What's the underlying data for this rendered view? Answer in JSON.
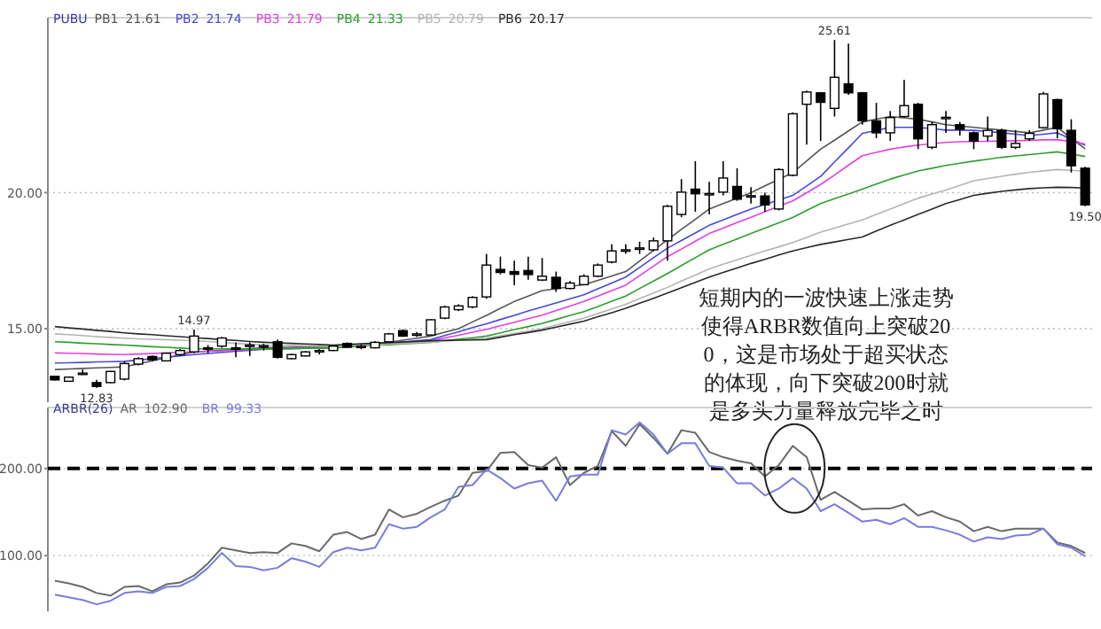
{
  "chart_data": [
    {
      "type": "candlestick",
      "title": "PUBU",
      "categories": [
        null,
        null,
        null,
        null,
        null,
        null,
        null,
        null,
        null,
        null,
        null,
        null,
        null,
        null,
        null,
        null,
        null,
        null,
        null,
        null,
        null,
        null,
        null,
        null,
        null,
        null,
        null,
        null,
        null,
        null,
        null,
        null,
        null,
        null,
        null,
        null,
        null,
        null,
        null,
        null,
        null,
        null,
        null,
        null,
        null,
        null,
        null,
        null,
        null,
        null,
        null,
        null,
        null,
        null,
        null,
        null,
        null,
        null,
        null,
        null,
        null,
        null,
        null,
        null,
        null,
        null,
        null,
        null,
        null,
        null,
        null,
        null,
        null,
        null,
        null
      ],
      "ohlc": [
        [
          13.25,
          13.27,
          13.1,
          13.12
        ],
        [
          13.07,
          13.25,
          13.05,
          13.22
        ],
        [
          13.35,
          13.5,
          13.3,
          13.37
        ],
        [
          13.02,
          13.12,
          12.83,
          12.88
        ],
        [
          13.02,
          13.45,
          13.0,
          13.43
        ],
        [
          13.15,
          13.8,
          13.1,
          13.72
        ],
        [
          13.7,
          13.95,
          13.65,
          13.9
        ],
        [
          13.98,
          14.02,
          13.8,
          13.86
        ],
        [
          13.82,
          14.12,
          13.8,
          14.1
        ],
        [
          14.05,
          14.25,
          14.0,
          14.2
        ],
        [
          14.15,
          14.97,
          14.1,
          14.73
        ],
        [
          14.3,
          14.4,
          14.1,
          14.28
        ],
        [
          14.36,
          14.7,
          14.3,
          14.66
        ],
        [
          14.3,
          14.5,
          13.95,
          14.28
        ],
        [
          14.38,
          14.5,
          14.0,
          14.4
        ],
        [
          14.36,
          14.45,
          14.2,
          14.38
        ],
        [
          14.52,
          14.6,
          13.9,
          13.95
        ],
        [
          13.9,
          14.08,
          13.88,
          14.05
        ],
        [
          14.0,
          14.18,
          13.98,
          14.15
        ],
        [
          14.18,
          14.25,
          14.05,
          14.2
        ],
        [
          14.2,
          14.4,
          14.18,
          14.36
        ],
        [
          14.46,
          14.5,
          14.3,
          14.32
        ],
        [
          14.35,
          14.42,
          14.25,
          14.36
        ],
        [
          14.3,
          14.55,
          14.28,
          14.5
        ],
        [
          14.52,
          14.85,
          14.5,
          14.81
        ],
        [
          14.93,
          14.98,
          14.7,
          14.73
        ],
        [
          14.8,
          14.88,
          14.7,
          14.81
        ],
        [
          14.77,
          15.35,
          14.75,
          15.33
        ],
        [
          15.39,
          15.85,
          15.35,
          15.8
        ],
        [
          15.7,
          15.9,
          15.65,
          15.84
        ],
        [
          15.8,
          16.2,
          15.75,
          16.15
        ],
        [
          16.17,
          17.75,
          16.1,
          17.34
        ],
        [
          17.18,
          17.65,
          17.0,
          17.07
        ],
        [
          17.1,
          17.5,
          16.6,
          17.0
        ],
        [
          17.14,
          17.65,
          16.8,
          16.99
        ],
        [
          16.79,
          17.6,
          16.75,
          16.93
        ],
        [
          16.89,
          17.1,
          16.35,
          16.48
        ],
        [
          16.48,
          16.75,
          16.45,
          16.68
        ],
        [
          16.62,
          17.0,
          16.6,
          16.93
        ],
        [
          16.93,
          17.4,
          16.9,
          17.34
        ],
        [
          17.45,
          18.1,
          17.4,
          17.86
        ],
        [
          17.88,
          18.1,
          17.75,
          17.9
        ],
        [
          17.95,
          18.2,
          17.75,
          17.97
        ],
        [
          17.9,
          18.35,
          17.85,
          18.23
        ],
        [
          18.23,
          19.55,
          17.5,
          19.5
        ],
        [
          19.2,
          20.5,
          19.1,
          20.02
        ],
        [
          20.13,
          21.16,
          19.3,
          19.96
        ],
        [
          19.95,
          20.4,
          19.2,
          19.97
        ],
        [
          20.02,
          21.16,
          19.9,
          20.54
        ],
        [
          20.23,
          20.9,
          19.7,
          19.76
        ],
        [
          19.87,
          20.2,
          19.6,
          19.89
        ],
        [
          19.88,
          20.0,
          19.3,
          19.55
        ],
        [
          19.4,
          20.9,
          19.35,
          20.85
        ],
        [
          20.64,
          22.95,
          20.6,
          22.9
        ],
        [
          23.25,
          23.75,
          21.77,
          23.7
        ],
        [
          23.67,
          23.7,
          21.9,
          23.32
        ],
        [
          23.1,
          25.61,
          22.8,
          24.24
        ],
        [
          24.0,
          25.48,
          23.6,
          23.67
        ],
        [
          23.67,
          23.7,
          22.5,
          22.64
        ],
        [
          22.64,
          23.3,
          22.0,
          22.2
        ],
        [
          22.2,
          23.0,
          21.9,
          22.76
        ],
        [
          22.8,
          24.14,
          22.75,
          23.2
        ],
        [
          23.25,
          23.3,
          21.6,
          21.98
        ],
        [
          21.67,
          22.6,
          21.6,
          22.5
        ],
        [
          22.75,
          23.0,
          22.2,
          22.77
        ],
        [
          22.5,
          22.6,
          22.1,
          22.33
        ],
        [
          22.2,
          22.25,
          21.6,
          21.9
        ],
        [
          22.08,
          22.8,
          21.9,
          22.29
        ],
        [
          22.29,
          22.35,
          21.6,
          21.67
        ],
        [
          21.67,
          22.3,
          21.6,
          21.81
        ],
        [
          21.98,
          22.3,
          21.9,
          22.18
        ],
        [
          22.39,
          23.7,
          22.35,
          23.63
        ],
        [
          23.42,
          23.45,
          22.0,
          22.35
        ],
        [
          22.29,
          22.7,
          20.74,
          20.99
        ],
        [
          20.9,
          20.95,
          19.5,
          19.55
        ]
      ],
      "series": [
        {
          "name": "PB1",
          "type": "line",
          "color": "#555555",
          "values": [
            13.5,
            13.52,
            13.54,
            13.56,
            13.58,
            13.6,
            13.71,
            13.82,
            13.93,
            14.04,
            14.15,
            14.18,
            14.21,
            14.24,
            14.27,
            14.3,
            14.31,
            14.32,
            14.33,
            14.34,
            14.35,
            14.39,
            14.43,
            14.46,
            14.5,
            14.58,
            14.65,
            14.73,
            14.87,
            15.0,
            15.25,
            15.49,
            15.75,
            16.0,
            16.2,
            16.4,
            16.47,
            16.55,
            16.62,
            16.78,
            16.94,
            17.1,
            17.49,
            17.88,
            18.27,
            18.65,
            19.02,
            19.4,
            19.6,
            19.8,
            20.0,
            20.25,
            20.49,
            20.74,
            21.17,
            21.6,
            21.93,
            22.27,
            22.6,
            22.7,
            22.8,
            22.75,
            22.7,
            22.6,
            22.5,
            22.45,
            22.4,
            22.35,
            22.3,
            22.25,
            22.2,
            22.3,
            22.4,
            22.0,
            21.61
          ]
        },
        {
          "name": "PB2",
          "type": "line",
          "color": "#4848d8",
          "values": [
            13.74,
            13.75,
            13.76,
            13.78,
            13.79,
            13.8,
            13.85,
            13.9,
            13.95,
            14.0,
            14.05,
            14.09,
            14.13,
            14.17,
            14.21,
            14.25,
            14.26,
            14.27,
            14.28,
            14.29,
            14.3,
            14.34,
            14.39,
            14.43,
            14.47,
            14.51,
            14.56,
            14.6,
            14.75,
            14.89,
            15.04,
            15.18,
            15.34,
            15.49,
            15.65,
            15.8,
            15.95,
            16.1,
            16.25,
            16.47,
            16.68,
            16.9,
            17.25,
            17.61,
            17.96,
            18.24,
            18.52,
            18.8,
            19.0,
            19.2,
            19.4,
            19.57,
            19.73,
            19.9,
            20.25,
            20.6,
            21.13,
            21.65,
            22.18,
            22.29,
            22.4,
            22.4,
            22.4,
            22.35,
            22.3,
            22.3,
            22.29,
            22.25,
            22.2,
            22.15,
            22.1,
            22.15,
            22.2,
            21.97,
            21.74
          ]
        },
        {
          "name": "PB3",
          "type": "line",
          "color": "#e040e0",
          "values": [
            14.11,
            14.1,
            14.09,
            14.07,
            14.06,
            14.05,
            14.07,
            14.09,
            14.11,
            14.13,
            14.15,
            14.17,
            14.19,
            14.21,
            14.23,
            14.25,
            14.26,
            14.27,
            14.28,
            14.29,
            14.3,
            14.34,
            14.37,
            14.41,
            14.44,
            14.48,
            14.51,
            14.55,
            14.66,
            14.76,
            14.87,
            14.98,
            15.11,
            15.24,
            15.37,
            15.5,
            15.67,
            15.83,
            16.0,
            16.2,
            16.4,
            16.6,
            16.95,
            17.3,
            17.65,
            17.93,
            18.22,
            18.5,
            18.7,
            18.9,
            19.1,
            19.3,
            19.5,
            19.7,
            20.0,
            20.3,
            20.65,
            21.01,
            21.36,
            21.48,
            21.6,
            21.68,
            21.75,
            21.8,
            21.85,
            21.87,
            21.88,
            21.89,
            21.9,
            21.91,
            21.92,
            21.94,
            21.95,
            21.87,
            21.79
          ]
        },
        {
          "name": "PB4",
          "type": "line",
          "color": "#2e9e2e",
          "values": [
            14.52,
            14.5,
            14.47,
            14.45,
            14.42,
            14.4,
            14.37,
            14.34,
            14.32,
            14.29,
            14.26,
            14.26,
            14.26,
            14.25,
            14.25,
            14.25,
            14.26,
            14.27,
            14.28,
            14.29,
            14.3,
            14.33,
            14.36,
            14.39,
            14.41,
            14.44,
            14.47,
            14.5,
            14.56,
            14.62,
            14.67,
            14.73,
            14.85,
            14.97,
            15.08,
            15.2,
            15.34,
            15.49,
            15.63,
            15.82,
            16.01,
            16.2,
            16.48,
            16.75,
            17.03,
            17.32,
            17.61,
            17.9,
            18.1,
            18.3,
            18.5,
            18.7,
            18.89,
            19.09,
            19.35,
            19.6,
            19.78,
            19.95,
            20.13,
            20.32,
            20.5,
            20.65,
            20.8,
            20.9,
            21.0,
            21.08,
            21.16,
            21.23,
            21.3,
            21.35,
            21.4,
            21.45,
            21.5,
            21.42,
            21.33
          ]
        },
        {
          "name": "PB5",
          "type": "line",
          "color": "#b4b4b4",
          "values": [
            14.81,
            14.78,
            14.75,
            14.71,
            14.68,
            14.65,
            14.63,
            14.61,
            14.6,
            14.58,
            14.56,
            14.53,
            14.5,
            14.46,
            14.43,
            14.4,
            14.39,
            14.38,
            14.37,
            14.36,
            14.35,
            14.37,
            14.39,
            14.41,
            14.44,
            14.46,
            14.48,
            14.5,
            14.54,
            14.58,
            14.61,
            14.65,
            14.74,
            14.83,
            14.91,
            15.0,
            15.13,
            15.26,
            15.39,
            15.56,
            15.73,
            15.9,
            16.11,
            16.31,
            16.52,
            16.75,
            16.97,
            17.2,
            17.37,
            17.53,
            17.7,
            17.86,
            18.01,
            18.17,
            18.36,
            18.55,
            18.7,
            18.85,
            19.0,
            19.2,
            19.4,
            19.6,
            19.8,
            19.95,
            20.1,
            20.27,
            20.44,
            20.52,
            20.6,
            20.68,
            20.75,
            20.8,
            20.85,
            20.82,
            20.79
          ]
        },
        {
          "name": "PB6",
          "type": "line",
          "color": "#2a2a2a",
          "values": [
            15.08,
            15.03,
            14.99,
            14.94,
            14.9,
            14.85,
            14.81,
            14.78,
            14.74,
            14.71,
            14.67,
            14.64,
            14.6,
            14.57,
            14.53,
            14.5,
            14.48,
            14.46,
            14.44,
            14.42,
            14.4,
            14.42,
            14.45,
            14.47,
            14.49,
            14.51,
            14.54,
            14.56,
            14.57,
            14.58,
            14.59,
            14.6,
            14.69,
            14.78,
            14.86,
            14.95,
            15.06,
            15.17,
            15.28,
            15.44,
            15.59,
            15.75,
            15.94,
            16.12,
            16.31,
            16.51,
            16.7,
            16.9,
            17.07,
            17.23,
            17.4,
            17.55,
            17.71,
            17.86,
            17.98,
            18.1,
            18.19,
            18.28,
            18.37,
            18.59,
            18.8,
            19.0,
            19.2,
            19.4,
            19.6,
            19.75,
            19.9,
            19.98,
            20.05,
            20.1,
            20.15,
            20.18,
            20.2,
            20.19,
            20.17
          ]
        }
      ],
      "ylim": [
        12.3,
        26.3
      ],
      "yticks": [
        {
          "value": 15,
          "label": "15.00"
        },
        {
          "value": 20,
          "label": "20.00"
        }
      ],
      "grid": "y",
      "legend": "top left",
      "tick_labels": "y",
      "annotations": [
        "21.61",
        "21.74",
        "21.79",
        "21.33",
        "20.79",
        "20.17",
        {
          "text": "14.97",
          "y": 14.97
        },
        {
          "text": "12.83",
          "y": 12.83
        },
        {
          "text": "25.61",
          "y": 25.61
        },
        {
          "text": "19.50",
          "y": 19.5
        },
        "短期内的一波快速上涨走势使得ARBR数值向上突破200，这是市场处于超买状态的体现，向下突破200时就是多头力量释放完毕之时"
      ]
    },
    {
      "type": "line",
      "title": "ARBR(26)",
      "categories": [
        null,
        null,
        null,
        null,
        null,
        null,
        null,
        null,
        null,
        null,
        null,
        null,
        null,
        null,
        null,
        null,
        null,
        null,
        null,
        null,
        null,
        null,
        null,
        null,
        null,
        null,
        null,
        null,
        null,
        null,
        null,
        null,
        null,
        null,
        null,
        null,
        null,
        null,
        null,
        null,
        null,
        null,
        null,
        null,
        null,
        null,
        null,
        null,
        null,
        null,
        null,
        null,
        null,
        null,
        null,
        null,
        null,
        null,
        null,
        null,
        null,
        null,
        null,
        null,
        null,
        null,
        null,
        null,
        null,
        null,
        null,
        null,
        null,
        null,
        null
      ],
      "series": [
        {
          "name": "AR",
          "color": "#6a6a6a",
          "values": [
            71,
            68,
            64,
            57,
            54,
            64,
            65,
            59,
            67,
            69,
            77,
            91,
            109,
            106,
            103,
            104,
            103,
            114,
            111,
            105,
            124,
            127,
            119,
            124,
            153,
            144,
            148,
            156,
            163,
            169,
            195,
            197,
            218,
            219,
            204,
            201,
            213,
            181,
            195,
            203,
            243,
            226,
            251,
            235,
            217,
            244,
            241,
            219,
            213,
            209,
            206,
            191,
            204,
            226,
            213,
            164,
            173,
            163,
            153,
            154,
            154,
            159,
            146,
            151,
            144,
            139,
            128,
            133,
            128,
            131,
            131,
            131,
            115,
            111,
            102.9
          ]
        },
        {
          "name": "BR",
          "color": "#7b7be0",
          "values": [
            55,
            52,
            49,
            44,
            48,
            57,
            59,
            57,
            64,
            65,
            73,
            86,
            103,
            88,
            87,
            83,
            86,
            97,
            93,
            87,
            104,
            109,
            106,
            109,
            136,
            131,
            133,
            144,
            153,
            179,
            181,
            199,
            189,
            177,
            183,
            186,
            163,
            191,
            193,
            193,
            244,
            239,
            253,
            239,
            217,
            229,
            229,
            203,
            201,
            183,
            183,
            169,
            177,
            189,
            177,
            151,
            159,
            149,
            139,
            141,
            136,
            143,
            133,
            133,
            129,
            124,
            116,
            121,
            119,
            123,
            124,
            131,
            113,
            109,
            99.33
          ]
        }
      ],
      "ylim": [
        36,
        266
      ],
      "yticks": [
        {
          "value": 100,
          "label": "100.00"
        },
        {
          "value": 200,
          "label": "200.00"
        }
      ],
      "grid": "y",
      "legend": "top left",
      "tick_labels": "y",
      "annotations": [
        "102.90",
        "99.33"
      ],
      "ref_lines": [
        {
          "axis": "y",
          "value": 200,
          "color": "#000000",
          "line_style": "dashed"
        }
      ]
    }
  ]
}
